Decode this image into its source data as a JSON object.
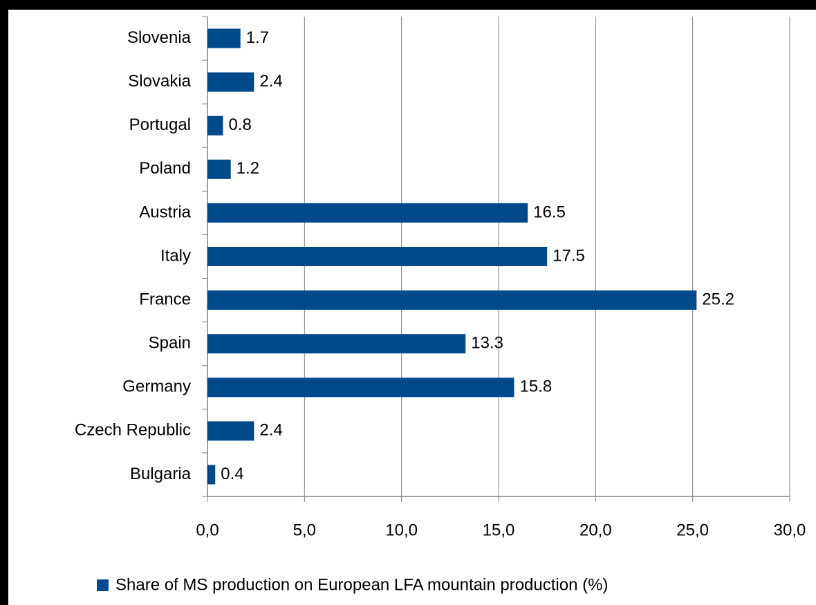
{
  "chart_data": {
    "type": "bar",
    "orientation": "horizontal",
    "categories": [
      "Slovenia",
      "Slovakia",
      "Portugal",
      "Poland",
      "Austria",
      "Italy",
      "France",
      "Spain",
      "Germany",
      "Czech Republic",
      "Bulgaria"
    ],
    "series": [
      {
        "name": "Share of MS production on European LFA mountain production (%)",
        "color": "#004a8c",
        "values": [
          1.7,
          2.4,
          0.8,
          1.2,
          16.5,
          17.5,
          25.2,
          13.3,
          15.8,
          2.4,
          0.4
        ]
      }
    ],
    "xlim": [
      0,
      30
    ],
    "xticks": [
      {
        "value": 0,
        "label": "0,0"
      },
      {
        "value": 5,
        "label": "5,0"
      },
      {
        "value": 10,
        "label": "10,0"
      },
      {
        "value": 15,
        "label": "15,0"
      },
      {
        "value": 20,
        "label": "20,0"
      },
      {
        "value": 25,
        "label": "25,0"
      },
      {
        "value": 30,
        "label": "30,0"
      }
    ],
    "grid": true,
    "legend": "bottom"
  }
}
